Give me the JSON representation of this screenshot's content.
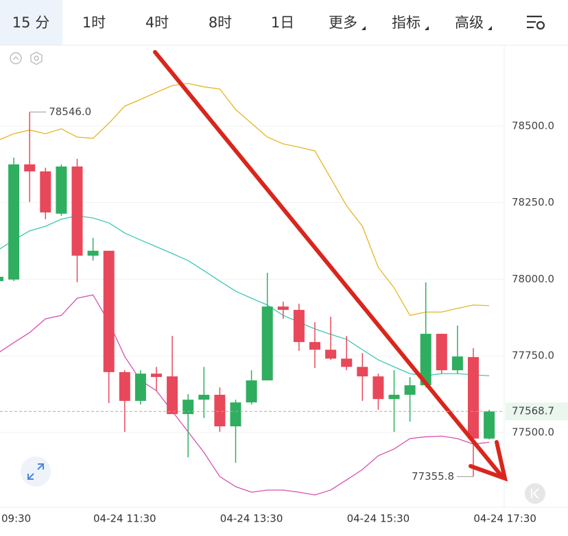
{
  "toolbar": {
    "tabs": [
      "15 分",
      "1时",
      "4时",
      "8时",
      "1日",
      "更多",
      "指标",
      "高级"
    ]
  },
  "chart_data": {
    "type": "candlestick",
    "categories": [
      "09:30",
      null,
      null,
      null,
      null,
      null,
      null,
      null,
      "04-24 11:30",
      null,
      null,
      null,
      null,
      null,
      null,
      null,
      "04-24 13:30",
      null,
      null,
      null,
      null,
      null,
      null,
      null,
      "04-24 15:30",
      null,
      null,
      null,
      null,
      null,
      null,
      null,
      "04-24 17:30"
    ],
    "open": [
      77994,
      77999,
      78375,
      78352,
      78214,
      78368,
      78077,
      78093,
      77697,
      77603,
      77692,
      77683,
      77560,
      77607,
      77623,
      77520,
      77598,
      77670,
      77911,
      77900,
      77795,
      77770,
      77741,
      77714,
      77683,
      77609,
      77623,
      77654,
      77822,
      77703,
      77746,
      77480,
      null
    ],
    "high": [
      78017,
      78397,
      78546.0,
      78364,
      78375,
      78393,
      78135,
      78093,
      77703,
      77703,
      77714,
      77815,
      77625,
      77714,
      77647,
      77607,
      77703,
      78021,
      77927,
      77920,
      77860,
      77878,
      77815,
      77759,
      77692,
      77703,
      77681,
      77990,
      77822,
      77849,
      77775,
      77574,
      null
    ],
    "low": [
      77990,
      77994,
      78252,
      78196,
      78207,
      77990,
      78061,
      77596,
      77502,
      77591,
      77636,
      77560,
      77419,
      77547,
      77502,
      77401,
      77591,
      77670,
      77871,
      77766,
      77710,
      77737,
      77703,
      77603,
      77574,
      77502,
      77535,
      77647,
      77692,
      77692,
      77355.8,
      77477,
      null
    ],
    "close": [
      78008,
      78375,
      78352,
      78218,
      78368,
      78077,
      78093,
      77697,
      77603,
      77692,
      77681,
      77560,
      77607,
      77623,
      77520,
      77598,
      77670,
      77911,
      77900,
      77795,
      77770,
      77741,
      77714,
      77683,
      77609,
      77623,
      77654,
      77822,
      77703,
      77748,
      77480,
      77568.7,
      null
    ],
    "up_color": "#2fae60",
    "down_color": "#e8485a",
    "lines": [
      {
        "color": "#e6b422",
        "values": [
          78453,
          78475,
          78487,
          78475,
          78491,
          78464,
          78460,
          78509,
          78565,
          78587,
          78610,
          78632,
          78639,
          78628,
          78621,
          78554,
          78509,
          78464,
          78442,
          78431,
          78419,
          78330,
          78240,
          78173,
          78039,
          77972,
          77882,
          77893,
          77893,
          77905,
          77916,
          77914,
          null
        ]
      },
      {
        "color": "#3cc6b4",
        "values": [
          78095,
          78128,
          78158,
          78173,
          78196,
          78207,
          78200,
          78184,
          78151,
          78128,
          78106,
          78084,
          78061,
          78028,
          77994,
          77961,
          77938,
          77916,
          77882,
          77860,
          77838,
          77820,
          77804,
          77770,
          77737,
          77714,
          77692,
          77685,
          77692,
          77692,
          77688,
          77685,
          null
        ]
      },
      {
        "color": "#d64fb0",
        "values": [
          77759,
          77793,
          77826,
          77871,
          77882,
          77938,
          77949,
          77860,
          77748,
          77670,
          77636,
          77569,
          77502,
          77435,
          77356,
          77323,
          77305,
          77312,
          77312,
          77305,
          77296,
          77312,
          77345,
          77379,
          77424,
          77446,
          77480,
          77486,
          77488,
          77480,
          77462,
          77468,
          null
        ]
      }
    ],
    "ylim": [
      77256,
      78766
    ],
    "yticks": [
      {
        "value": 77500,
        "label": "77500.0"
      },
      {
        "value": 77750,
        "label": "77750.0"
      },
      {
        "value": 78000,
        "label": "78000.0"
      },
      {
        "value": 78250,
        "label": "78250.0"
      },
      {
        "value": 78500,
        "label": "78500.0"
      }
    ],
    "grid": true,
    "max_label": "78546.0",
    "min_label": "77355.8",
    "last_price_label": "77568.7"
  }
}
